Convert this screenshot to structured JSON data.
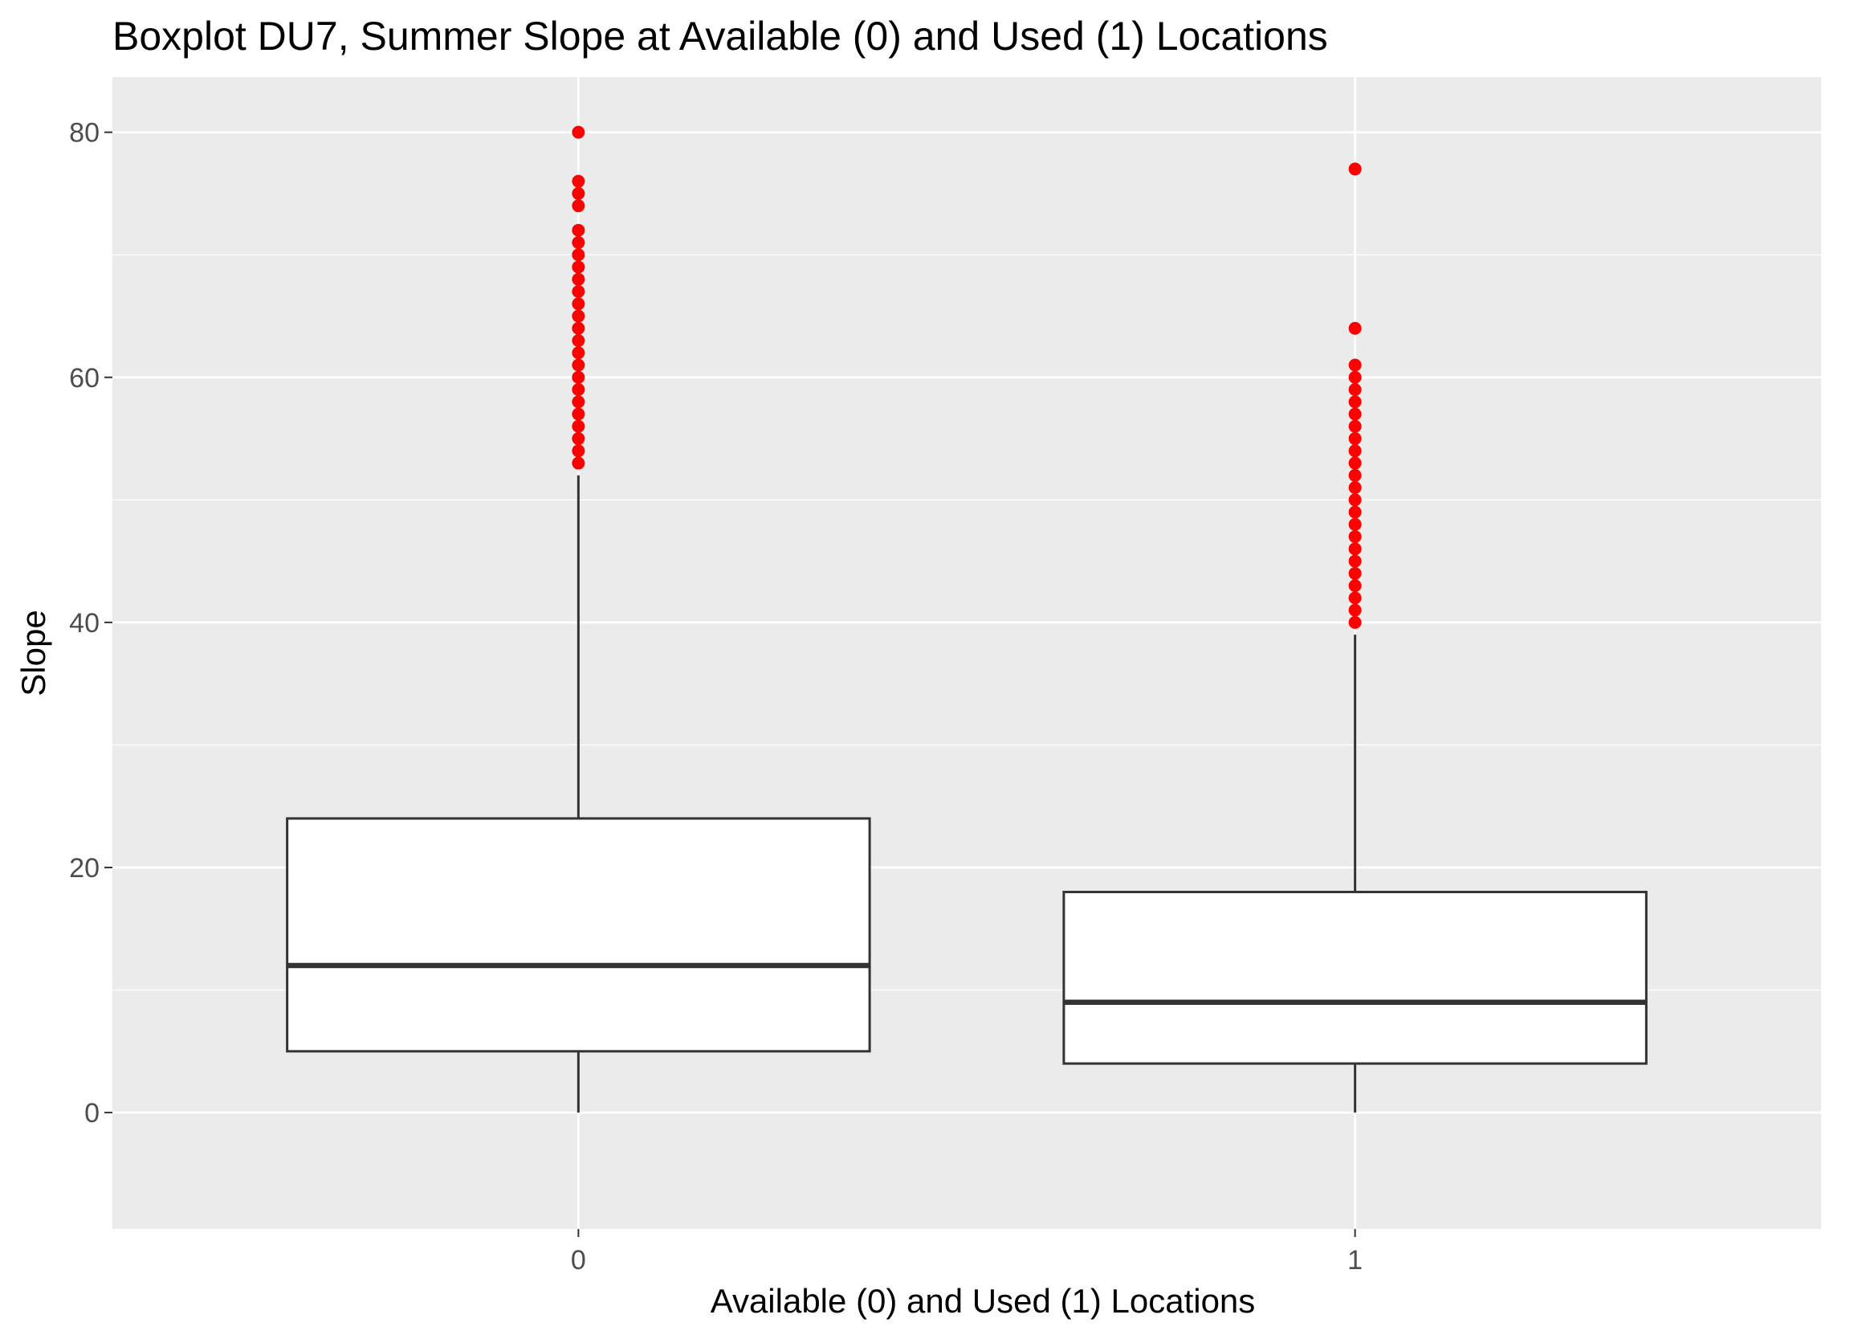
{
  "chart_data": {
    "type": "boxplot",
    "title": "Boxplot DU7, Summer Slope at Available (0) and Used (1) Locations",
    "xlabel": "Available (0) and Used (1) Locations",
    "ylabel": "Slope",
    "categories": [
      "0",
      "1"
    ],
    "ylim": [
      -9.5,
      84.5
    ],
    "yticks": [
      0,
      20,
      40,
      60,
      80
    ],
    "grid": true,
    "legend": "none",
    "colors": {
      "panel": "#ebebeb",
      "grid": "#ffffff",
      "box_fill": "#ffffff",
      "box_line": "#333333",
      "outlier": "#ff0000",
      "tick_text": "#4d4d4d"
    },
    "boxes": [
      {
        "category": "0",
        "min": 0,
        "q1": 5,
        "median": 12,
        "q3": 24,
        "max": 52,
        "outliers": [
          53,
          54,
          55,
          56,
          57,
          58,
          59,
          60,
          61,
          62,
          63,
          64,
          65,
          66,
          67,
          68,
          69,
          70,
          71,
          72,
          74,
          75,
          76,
          80
        ]
      },
      {
        "category": "1",
        "min": 0,
        "q1": 4,
        "median": 9,
        "q3": 18,
        "max": 39,
        "outliers": [
          40,
          41,
          42,
          43,
          44,
          45,
          46,
          47,
          48,
          49,
          50,
          51,
          52,
          53,
          54,
          55,
          56,
          57,
          58,
          59,
          60,
          61,
          64,
          77
        ]
      }
    ]
  }
}
